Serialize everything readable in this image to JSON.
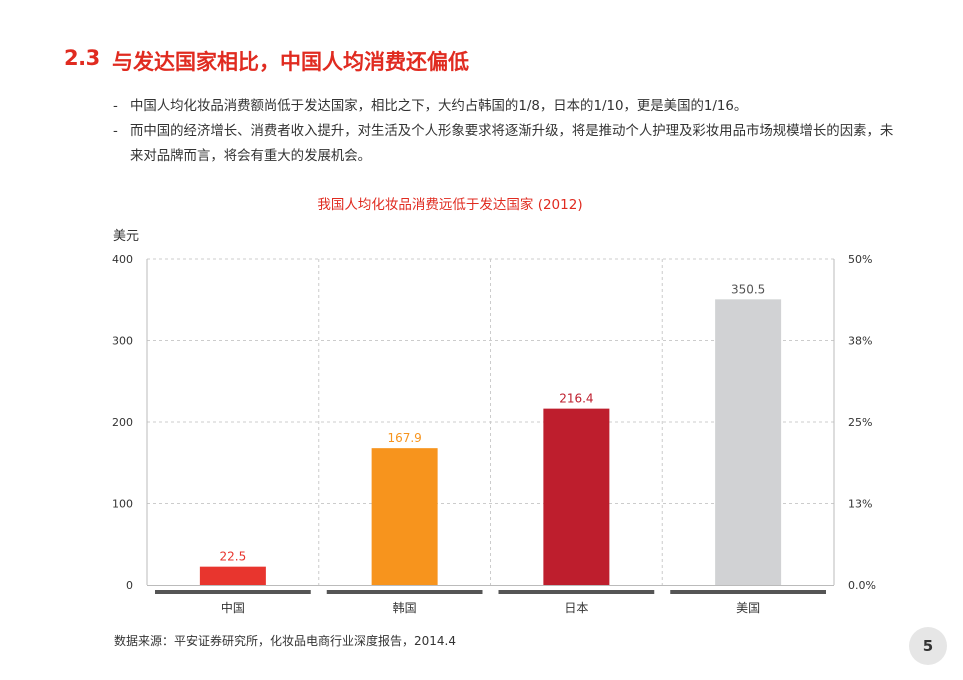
{
  "header": {
    "section_number": "2.3",
    "section_title": "与发达国家相比，中国人均消费还偏低"
  },
  "bullets": [
    "中国人均化妆品消费额尚低于发达国家，相比之下，大约占韩国的1/8，日本的1/10，更是美国的1/16。",
    "而中国的经济增长、消费者收入提升，对生活及个人形象要求将逐渐升级，将是推动个人护理及彩妆用品市场规模增长的因素，未来对品牌而言，将会有重大的发展机会。"
  ],
  "source": "数据来源：平安证券研究所，化妆品电商行业深度报告，2014.4",
  "page_number": "5",
  "chart_data": {
    "type": "bar",
    "title": "我国人均化妆品消费远低于发达国家 (2012)",
    "ylabel": "美元",
    "xlabel": "",
    "categories": [
      "中国",
      "韩国",
      "日本",
      "美国"
    ],
    "values": [
      22.5,
      167.9,
      216.4,
      350.5
    ],
    "value_labels": [
      "22.5",
      "167.9",
      "216.4",
      "350.5"
    ],
    "bar_colors": [
      "#e8352e",
      "#f7941d",
      "#be1e2d",
      "#d1d2d4"
    ],
    "label_colors": [
      "#e8352e",
      "#f7941d",
      "#be1e2d",
      "#555555"
    ],
    "ylim": [
      0,
      400
    ],
    "y_ticks": [
      "0",
      "100",
      "200",
      "300",
      "400"
    ],
    "y_tick_values": [
      0,
      100,
      200,
      300,
      400
    ],
    "y2_ticks": [
      "0.0%",
      "13%",
      "25%",
      "38%",
      "50%"
    ],
    "grid": true,
    "legend": "none"
  }
}
